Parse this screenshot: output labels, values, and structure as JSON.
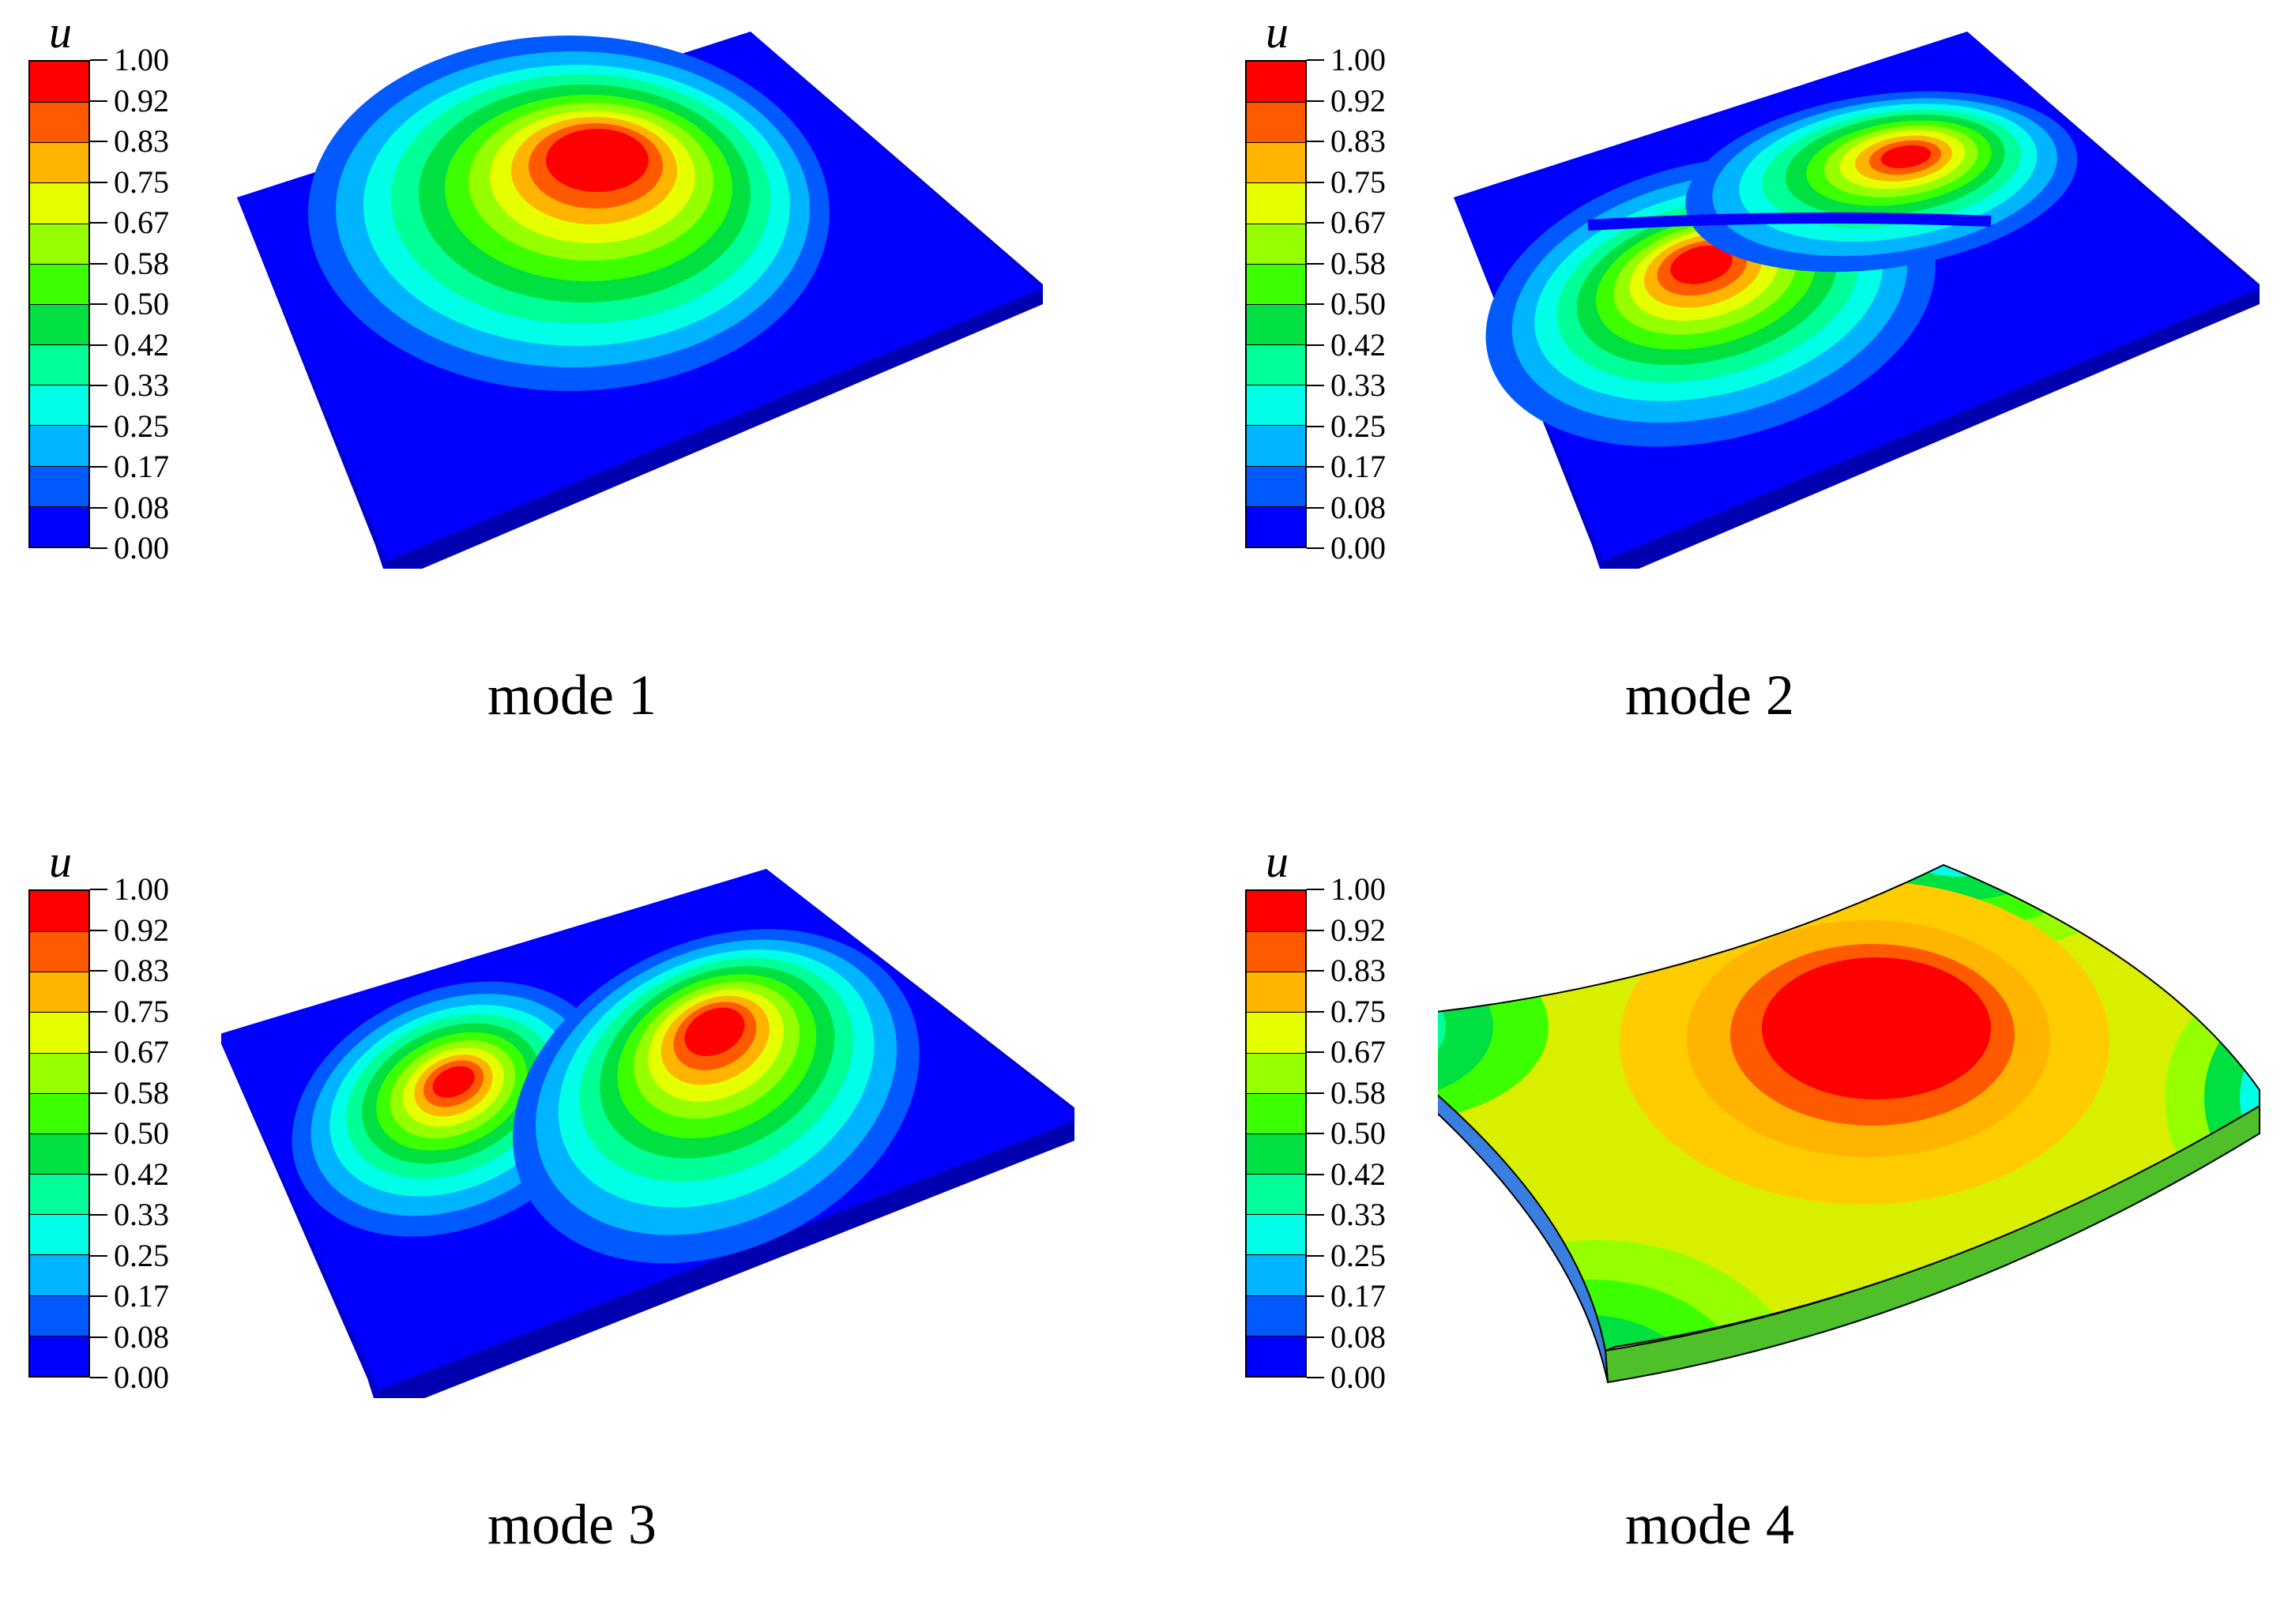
{
  "legend_symbol": "u",
  "legend_ticks": [
    "1.00",
    "0.92",
    "0.83",
    "0.75",
    "0.67",
    "0.58",
    "0.50",
    "0.42",
    "0.33",
    "0.25",
    "0.17",
    "0.08",
    "0.00"
  ],
  "legend_colors": [
    "#ff0000",
    "#ff5a00",
    "#ffb400",
    "#e6ff00",
    "#96ff00",
    "#3cff00",
    "#00e040",
    "#00ff96",
    "#00ffe6",
    "#00b4ff",
    "#005aff",
    "#0000ff"
  ],
  "panels": [
    {
      "caption": "mode 1"
    },
    {
      "caption": "mode 2"
    },
    {
      "caption": "mode 3"
    },
    {
      "caption": "mode 4"
    }
  ]
}
